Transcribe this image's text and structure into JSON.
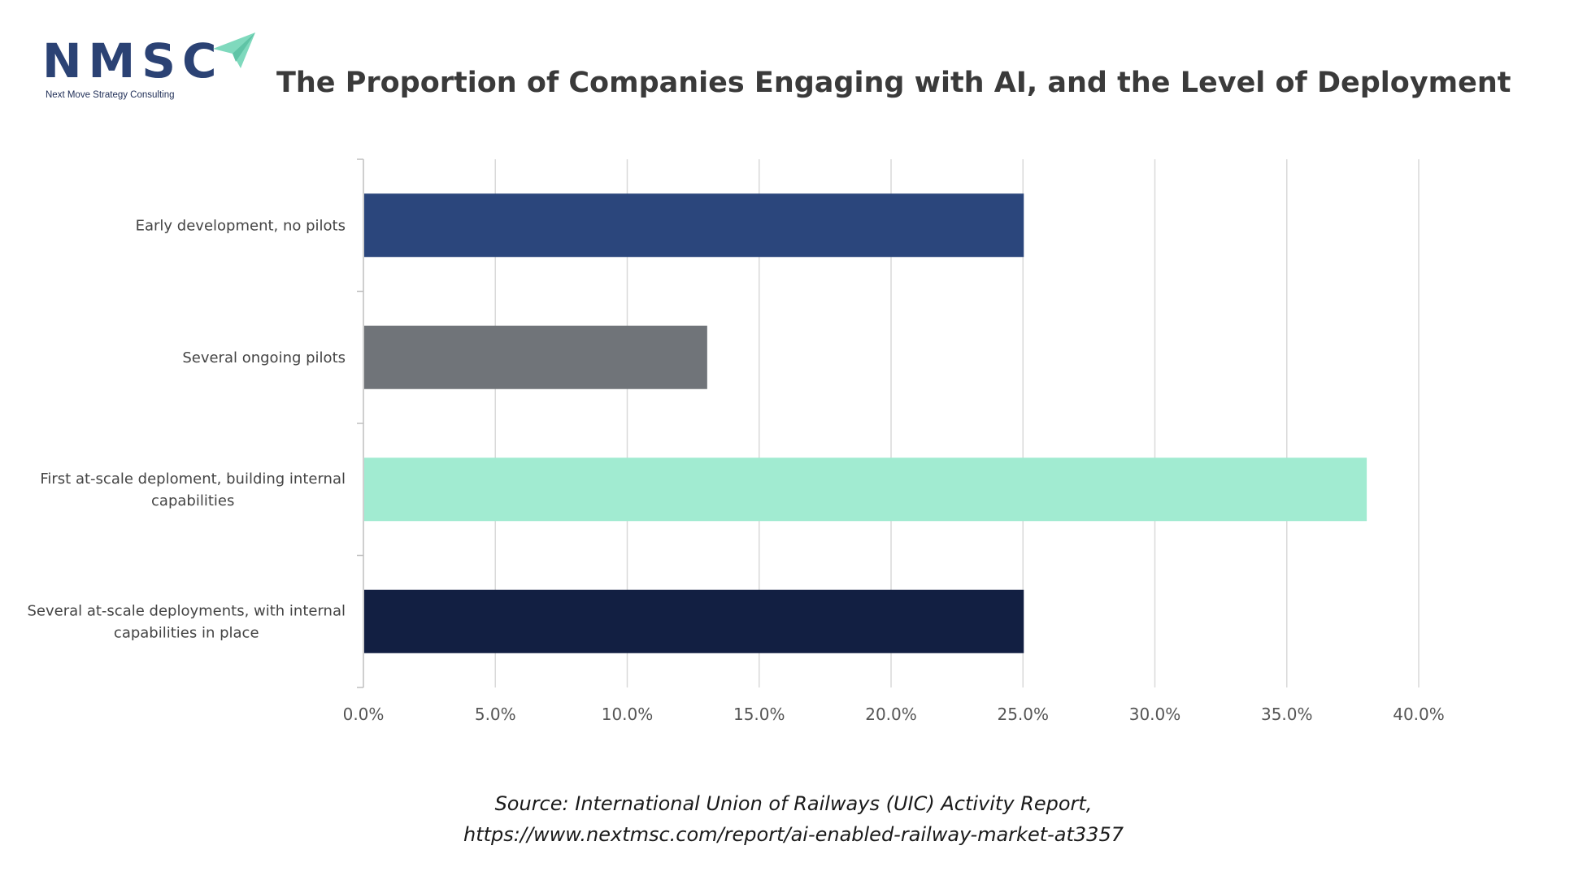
{
  "logo": {
    "name": "NMSC",
    "tagline": "Next Move Strategy Consulting",
    "colors": {
      "text": "#2b4274",
      "plane": "#7fd9bd"
    }
  },
  "chart_data": {
    "type": "bar",
    "orientation": "horizontal",
    "title": "The Proportion of Companies Engaging with AI, and the Level of Deployment",
    "categories": [
      "Early development, no pilots",
      "Several ongoing pilots",
      "First at-scale deploment, building internal capabilities",
      "Several at-scale deployments, with internal capabilities in place"
    ],
    "category_label_lines": [
      [
        "Early development, no pilots"
      ],
      [
        "Several ongoing pilots"
      ],
      [
        "First at-scale deploment, building internal",
        "capabilities"
      ],
      [
        "Several at-scale deployments, with internal",
        "capabilities in place"
      ]
    ],
    "values": [
      25.0,
      13.0,
      38.0,
      25.0
    ],
    "colors": [
      "#2b467c",
      "#707479",
      "#a1ebd1",
      "#121f42"
    ],
    "xlim": [
      0,
      40
    ],
    "xticks": [
      0,
      5,
      10,
      15,
      20,
      25,
      30,
      35,
      40
    ],
    "xtick_labels": [
      "0.0%",
      "5.0%",
      "10.0%",
      "15.0%",
      "20.0%",
      "25.0%",
      "30.0%",
      "35.0%",
      "40.0%"
    ],
    "xlabel": "",
    "ylabel": "",
    "grid": "vertical",
    "legend": "none"
  },
  "source": {
    "line1": "Source: International Union of Railways (UIC) Activity Report,",
    "line2": "https://www.nextmsc.com/report/ai-enabled-railway-market-at3357"
  }
}
